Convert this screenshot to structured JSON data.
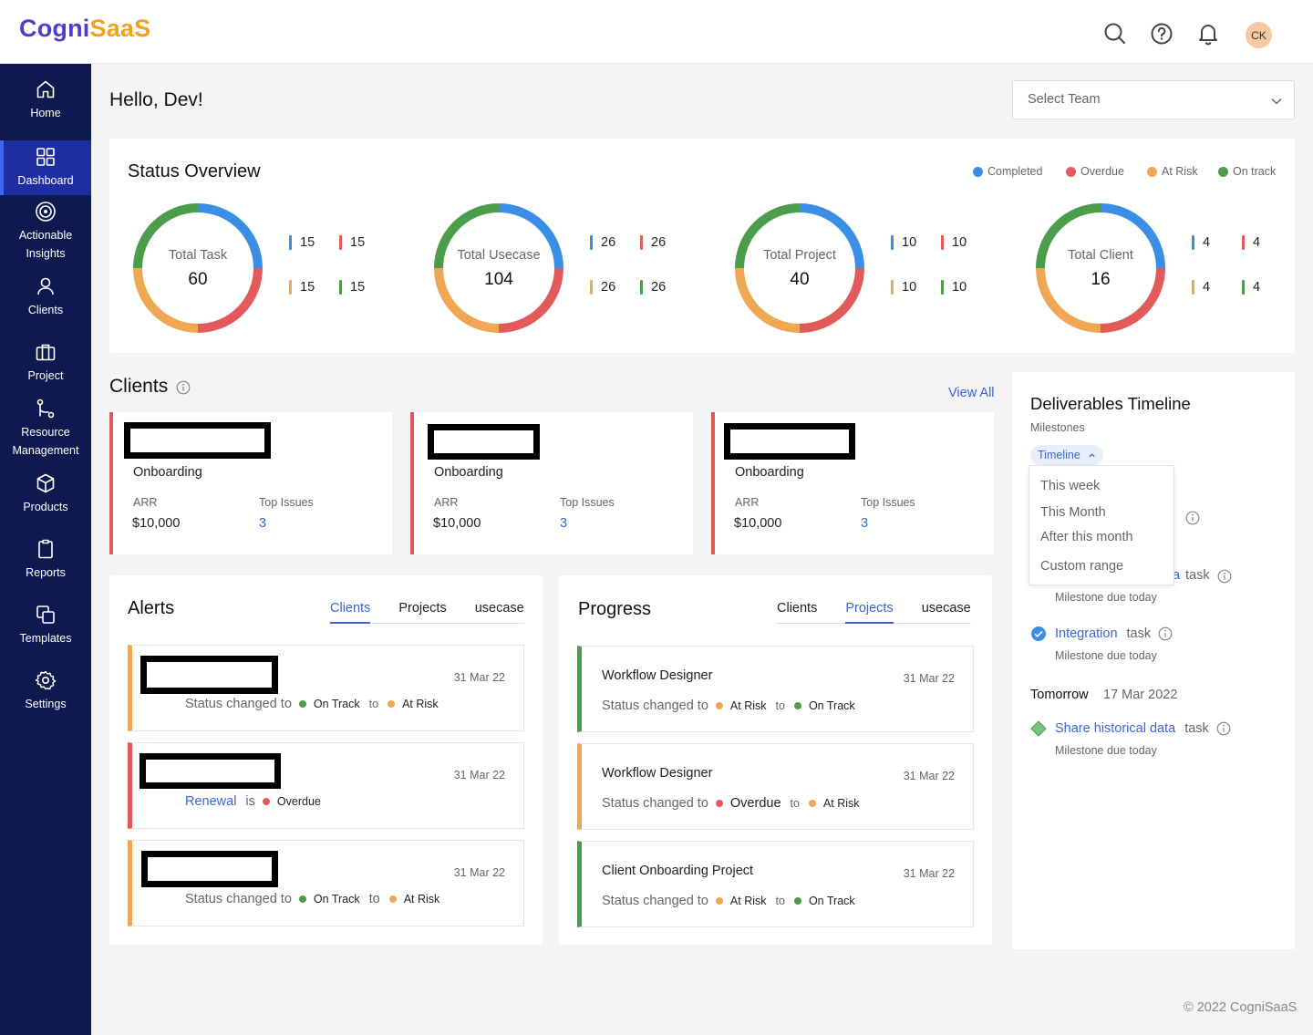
{
  "app": {
    "logo_part1": "Cogni",
    "logo_part2": "SaaS",
    "avatar_initials": "CK",
    "footer": "© 2022 CogniSaaS",
    "colors": {
      "completed": "#3b8ee6",
      "overdue": "#e35a5a",
      "at_risk": "#f0a754",
      "on_track": "#4b9d4b",
      "sidebar": "#0e1a4f",
      "accent": "#3a66d5"
    }
  },
  "sidebar": {
    "items": [
      {
        "label": "Home",
        "icon": "home-icon"
      },
      {
        "label": "Dashboard",
        "icon": "dashboard-grid-icon",
        "active": true
      },
      {
        "label": "Actionable Insights",
        "icon": "target-icon"
      },
      {
        "label": "Clients",
        "icon": "user-icon"
      },
      {
        "label": "Project",
        "icon": "briefcase-icon"
      },
      {
        "label": "Resource Management",
        "icon": "git-flow-icon"
      },
      {
        "label": "Products",
        "icon": "cube-icon"
      },
      {
        "label": "Reports",
        "icon": "clipboard-icon"
      },
      {
        "label": "Templates",
        "icon": "copy-icon"
      },
      {
        "label": "Settings",
        "icon": "gear-icon"
      }
    ]
  },
  "header": {
    "greeting": "Hello, Dev!",
    "team_select_placeholder": "Select Team"
  },
  "status_overview": {
    "title": "Status Overview",
    "legend": [
      "Completed",
      "Overdue",
      "At Risk",
      "On track"
    ],
    "charts": [
      {
        "label": "Total Task",
        "total": "60",
        "completed": "15",
        "overdue": "15",
        "at_risk": "15",
        "on_track": "15"
      },
      {
        "label": "Total Usecase",
        "total": "104",
        "completed": "26",
        "overdue": "26",
        "at_risk": "26",
        "on_track": "26"
      },
      {
        "label": "Total Project",
        "total": "40",
        "completed": "10",
        "overdue": "10",
        "at_risk": "10",
        "on_track": "10"
      },
      {
        "label": "Total Client",
        "total": "16",
        "completed": "4",
        "overdue": "4",
        "at_risk": "4",
        "on_track": "4"
      }
    ]
  },
  "clients": {
    "title": "Clients",
    "view_all": "View All",
    "cards": [
      {
        "status": "Onboarding",
        "arr_label": "ARR",
        "arr": "$10,000",
        "issues_label": "Top Issues",
        "issues": "3"
      },
      {
        "status": "Onboarding",
        "arr_label": "ARR",
        "arr": "$10,000",
        "issues_label": "Top Issues",
        "issues": "3"
      },
      {
        "status": "Onboarding",
        "arr_label": "ARR",
        "arr": "$10,000",
        "issues_label": "Top Issues",
        "issues": "3"
      }
    ]
  },
  "alerts": {
    "title": "Alerts",
    "tabs": [
      "Clients",
      "Projects",
      "usecase"
    ],
    "active_tab": "Clients",
    "items": [
      {
        "date": "31 Mar 22",
        "prefix": "Status changed to",
        "from": "On Track",
        "to_word": "to",
        "to": "At Risk"
      },
      {
        "date": "31 Mar 22",
        "link": "Renewal",
        "is_word": "is",
        "status": "Overdue"
      },
      {
        "date": "31 Mar 22",
        "prefix": "Status changed to",
        "from": "On Track",
        "to_word": "to",
        "to": "At Risk"
      }
    ]
  },
  "progress": {
    "title": "Progress",
    "tabs": [
      "Clients",
      "Projects",
      "usecase"
    ],
    "active_tab": "Projects",
    "items": [
      {
        "title": "Workflow Designer",
        "date": "31 Mar 22",
        "prefix": "Status changed to",
        "from": "At Risk",
        "to_word": "to",
        "to": "On Track"
      },
      {
        "title": "Workflow Designer",
        "date": "31 Mar 22",
        "prefix": "Status changed to",
        "from": "Overdue",
        "to_word": "to",
        "to": "At Risk"
      },
      {
        "title": "Client Onboarding Project",
        "date": "31 Mar 22",
        "prefix": "Status changed to",
        "from": "At Risk",
        "to_word": "to",
        "to": "On Track"
      }
    ]
  },
  "deliverables": {
    "title": "Deliverables Timeline",
    "subtitle": "Milestones",
    "filter_label": "Timeline",
    "dropdown_options": [
      "This week",
      "This Month",
      "After this month",
      "Custom range"
    ],
    "partial_rows": [
      {
        "fragment": "k"
      },
      {
        "fragment": "a",
        "kind": "task",
        "sub": "Milestone due today"
      }
    ],
    "milestones": [
      {
        "name": "Integration",
        "kind": "task",
        "sub": "Milestone due today"
      }
    ],
    "tomorrow_label": "Tomorrow",
    "tomorrow_date": "17 Mar 2022",
    "tomorrow_items": [
      {
        "name": "Share historical data",
        "kind": "task",
        "sub": "Milestone due today"
      }
    ]
  }
}
